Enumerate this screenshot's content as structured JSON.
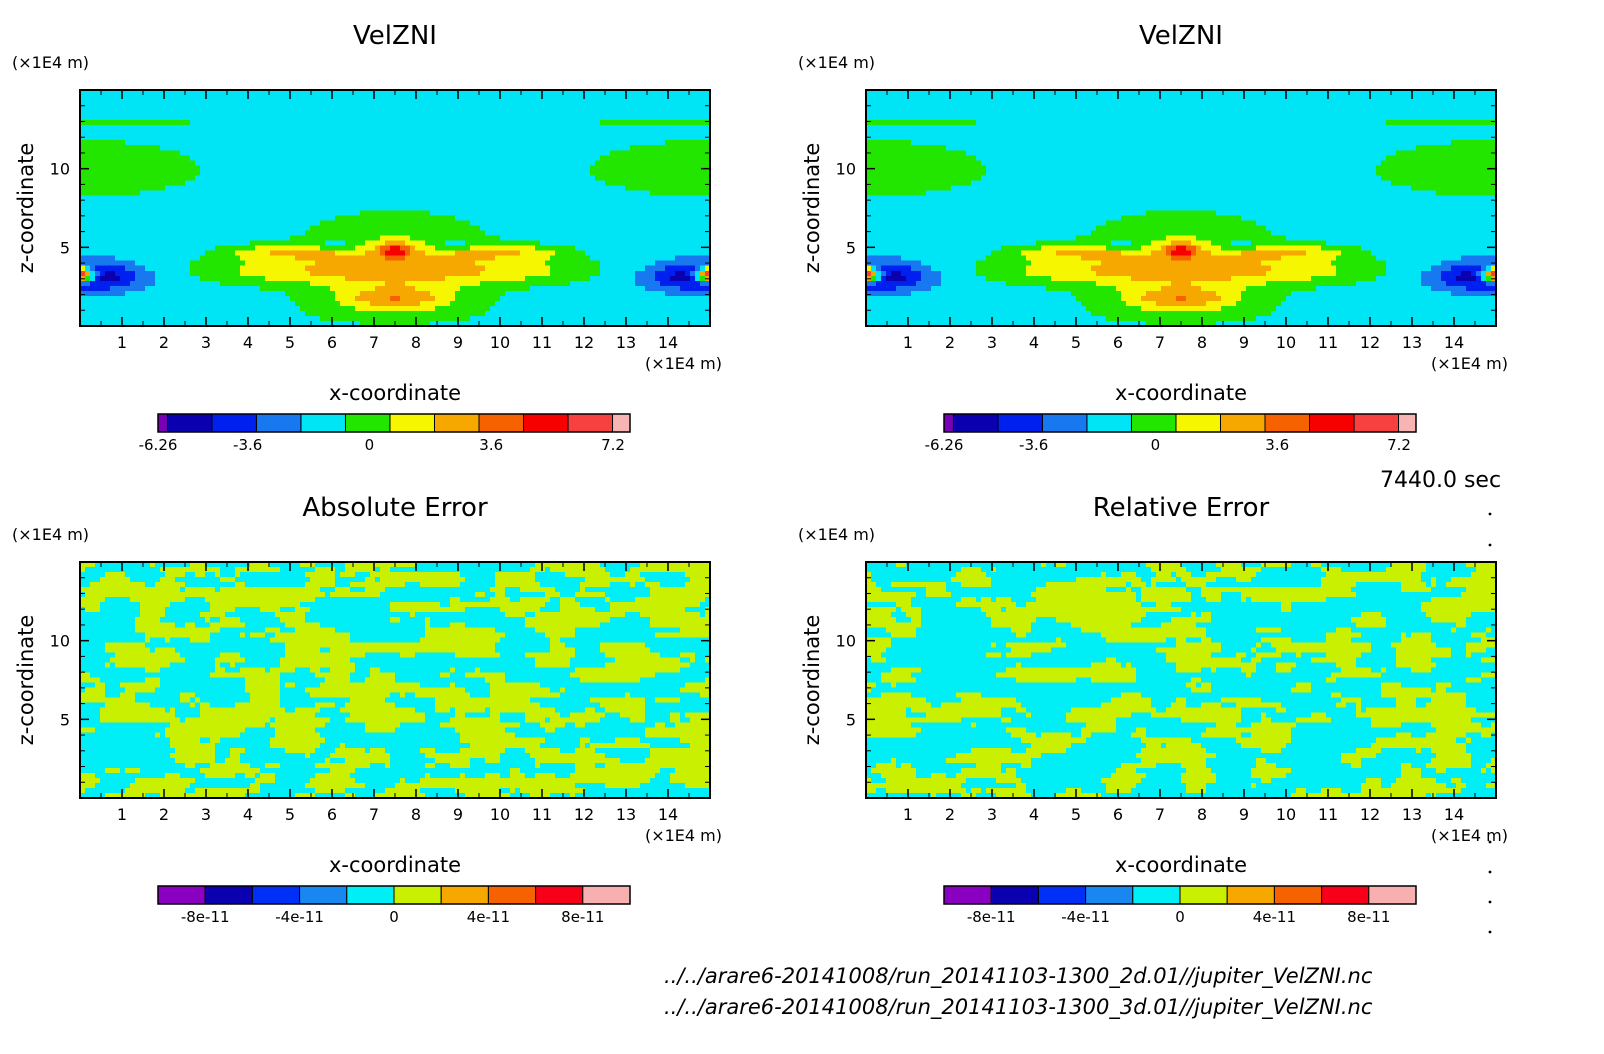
{
  "time_label": "7440.0 sec",
  "files": [
    "../../arare6-20141008/run_20141103-1300_2d.01//jupiter_VelZNI.nc",
    "../../arare6-20141008/run_20141103-1300_3d.01//jupiter_VelZNI.nc"
  ],
  "chart_data": [
    {
      "type": "heatmap",
      "title": "VelZNI",
      "xlabel": "x-coordinate",
      "ylabel": "z-coordinate",
      "x_unit": "(×1E4 m)",
      "y_unit": "(×1E4 m)",
      "xlim": [
        0,
        15
      ],
      "ylim": [
        0,
        15
      ],
      "x_ticks": [
        "1",
        "2",
        "3",
        "4",
        "5",
        "6",
        "7",
        "8",
        "9",
        "10",
        "11",
        "12",
        "13",
        "14"
      ],
      "y_ticks": [
        "5",
        "10"
      ],
      "colorbar": {
        "colors": [
          "#7a00b8",
          "#0a00b0",
          "#0020f0",
          "#1878f0",
          "#00e5f5",
          "#22e600",
          "#f6f600",
          "#f6a800",
          "#f76200",
          "#f70000",
          "#f74040",
          "#f6b4b4"
        ],
        "tick_labels": [
          "-6.26",
          "-3.6",
          "0",
          "3.6",
          "7.2"
        ]
      },
      "field": "VelZNI"
    },
    {
      "type": "heatmap",
      "title": "VelZNI",
      "xlabel": "x-coordinate",
      "ylabel": "z-coordinate",
      "x_unit": "(×1E4 m)",
      "y_unit": "(×1E4 m)",
      "xlim": [
        0,
        15
      ],
      "ylim": [
        0,
        15
      ],
      "x_ticks": [
        "1",
        "2",
        "3",
        "4",
        "5",
        "6",
        "7",
        "8",
        "9",
        "10",
        "11",
        "12",
        "13",
        "14"
      ],
      "y_ticks": [
        "5",
        "10"
      ],
      "colorbar": {
        "colors": [
          "#7a00b8",
          "#0a00b0",
          "#0020f0",
          "#1878f0",
          "#00e5f5",
          "#22e600",
          "#f6f600",
          "#f6a800",
          "#f76200",
          "#f70000",
          "#f74040",
          "#f6b4b4"
        ],
        "tick_labels": [
          "-6.26",
          "-3.6",
          "0",
          "3.6",
          "7.2"
        ]
      },
      "field": "VelZNI"
    },
    {
      "type": "heatmap",
      "title": "Absolute Error",
      "xlabel": "x-coordinate",
      "ylabel": "z-coordinate",
      "x_unit": "(×1E4 m)",
      "y_unit": "(×1E4 m)",
      "xlim": [
        0,
        15
      ],
      "ylim": [
        0,
        15
      ],
      "x_ticks": [
        "1",
        "2",
        "3",
        "4",
        "5",
        "6",
        "7",
        "8",
        "9",
        "10",
        "11",
        "12",
        "13",
        "14"
      ],
      "y_ticks": [
        "5",
        "10"
      ],
      "colorbar": {
        "colors": [
          "#8a00c0",
          "#0a00b0",
          "#0030f5",
          "#1888f0",
          "#00eef5",
          "#c8f000",
          "#f6a800",
          "#f76200",
          "#f70018",
          "#f6b0b0"
        ],
        "tick_labels": [
          "-8e-11",
          "-4e-11",
          "0",
          "4e-11",
          "8e-11"
        ]
      },
      "field": "noise_abs"
    },
    {
      "type": "heatmap",
      "title": "Relative Error",
      "xlabel": "x-coordinate",
      "ylabel": "z-coordinate",
      "x_unit": "(×1E4 m)",
      "y_unit": "(×1E4 m)",
      "xlim": [
        0,
        15
      ],
      "ylim": [
        0,
        15
      ],
      "x_ticks": [
        "1",
        "2",
        "3",
        "4",
        "5",
        "6",
        "7",
        "8",
        "9",
        "10",
        "11",
        "12",
        "13",
        "14"
      ],
      "y_ticks": [
        "5",
        "10"
      ],
      "colorbar": {
        "colors": [
          "#8a00c0",
          "#0a00b0",
          "#0030f5",
          "#1888f0",
          "#00eef5",
          "#c8f000",
          "#f6a800",
          "#f76200",
          "#f70018",
          "#f6b0b0"
        ],
        "tick_labels": [
          "-8e-11",
          "-4e-11",
          "0",
          "4e-11",
          "8e-11"
        ]
      },
      "field": "noise_rel"
    }
  ]
}
